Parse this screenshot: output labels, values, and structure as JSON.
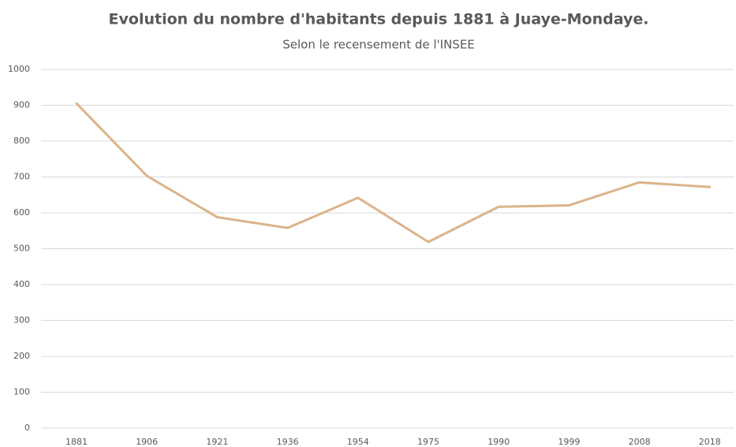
{
  "chart_data": {
    "type": "line",
    "title": "Evolution du nombre d'habitants depuis 1881 à Juaye-Mondaye.",
    "subtitle": "Selon le recensement de l'INSEE",
    "categories": [
      "1881",
      "1906",
      "1921",
      "1936",
      "1954",
      "1975",
      "1990",
      "1999",
      "2008",
      "2018"
    ],
    "values": [
      905,
      703,
      588,
      558,
      642,
      519,
      617,
      621,
      685,
      672
    ],
    "color": "#dcb38a",
    "ylim": [
      0,
      1000
    ],
    "yticks": [
      0,
      100,
      200,
      300,
      400,
      500,
      600,
      700,
      800,
      900,
      1000
    ],
    "grid": true
  }
}
